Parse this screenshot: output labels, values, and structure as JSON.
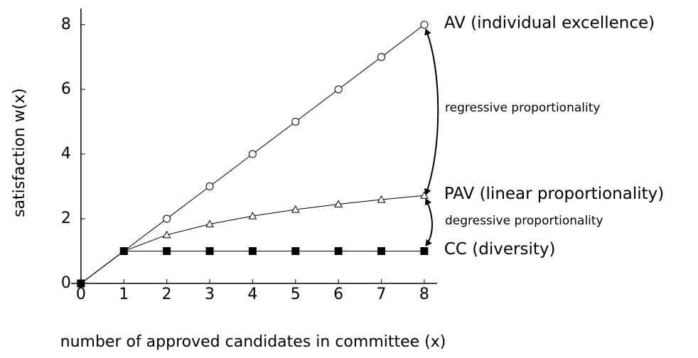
{
  "chart_data": {
    "type": "line",
    "x_label": "number of approved candidates in committee (x)",
    "y_label": "satisfaction w(x)",
    "x": [
      0,
      1,
      2,
      3,
      4,
      5,
      6,
      7,
      8
    ],
    "series": [
      {
        "name": "AV (individual excellence)",
        "color": "#000000",
        "marker": "circle",
        "values": [
          0,
          1,
          2,
          3,
          4,
          5,
          6,
          7,
          8
        ]
      },
      {
        "name": "PAV (linear proportionality)",
        "color": "#000000",
        "marker": "triangle",
        "values": [
          0,
          1,
          1.5,
          1.833,
          2.083,
          2.283,
          2.45,
          2.593,
          2.718
        ]
      },
      {
        "name": "CC (diversity)",
        "color": "#000000",
        "marker": "square",
        "values": [
          0,
          1,
          1,
          1,
          1,
          1,
          1,
          1,
          1
        ]
      }
    ],
    "annotations": [
      "regressive proportionality",
      "degressive proportionality"
    ],
    "xlim": [
      -0.23,
      8.3
    ],
    "ylim": [
      0,
      8.5
    ],
    "xticks": [
      0,
      1,
      2,
      3,
      4,
      5,
      6,
      7,
      8
    ],
    "yticks": [
      0,
      2,
      4,
      6,
      8
    ]
  }
}
